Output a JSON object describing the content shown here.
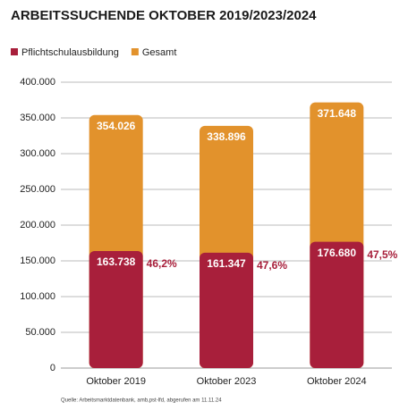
{
  "chart_data": {
    "type": "bar",
    "title": "ARBEITSSUCHENDE OKTOBER 2019/2023/2024",
    "categories": [
      "Oktober 2019",
      "Oktober 2023",
      "Oktober 2024"
    ],
    "series": [
      {
        "name": "Pflichtschulausbildung",
        "color": "#a81f3b",
        "values": [
          163738,
          161347,
          176680
        ],
        "value_labels": [
          "163.738",
          "161.347",
          "176.680"
        ]
      },
      {
        "name": "Gesamt",
        "color": "#e2922c",
        "values": [
          354026,
          338896,
          371648
        ],
        "value_labels": [
          "354.026",
          "338.896",
          "371.648"
        ]
      }
    ],
    "annotations": [
      "46,2%",
      "47,6%",
      "47,5%"
    ],
    "ylim": [
      0,
      400000
    ],
    "yticks": [
      0,
      {
        "value": 50000,
        "label": "50.000"
      },
      {
        "value": 100000,
        "label": "100.000"
      },
      {
        "value": 150000,
        "label": "150.000"
      },
      {
        "value": 200000,
        "label": "200.000"
      },
      {
        "value": 250000,
        "label": "250.000"
      },
      {
        "value": 300000,
        "label": "300.000"
      },
      {
        "value": 350000,
        "label": "350.000"
      },
      {
        "value": 400000,
        "label": "400.000"
      }
    ],
    "grid": true,
    "source": "Quelle: Arbeitsmarktdatenbank, amb,pst-lfd, abgerufen am 11.11.24"
  }
}
